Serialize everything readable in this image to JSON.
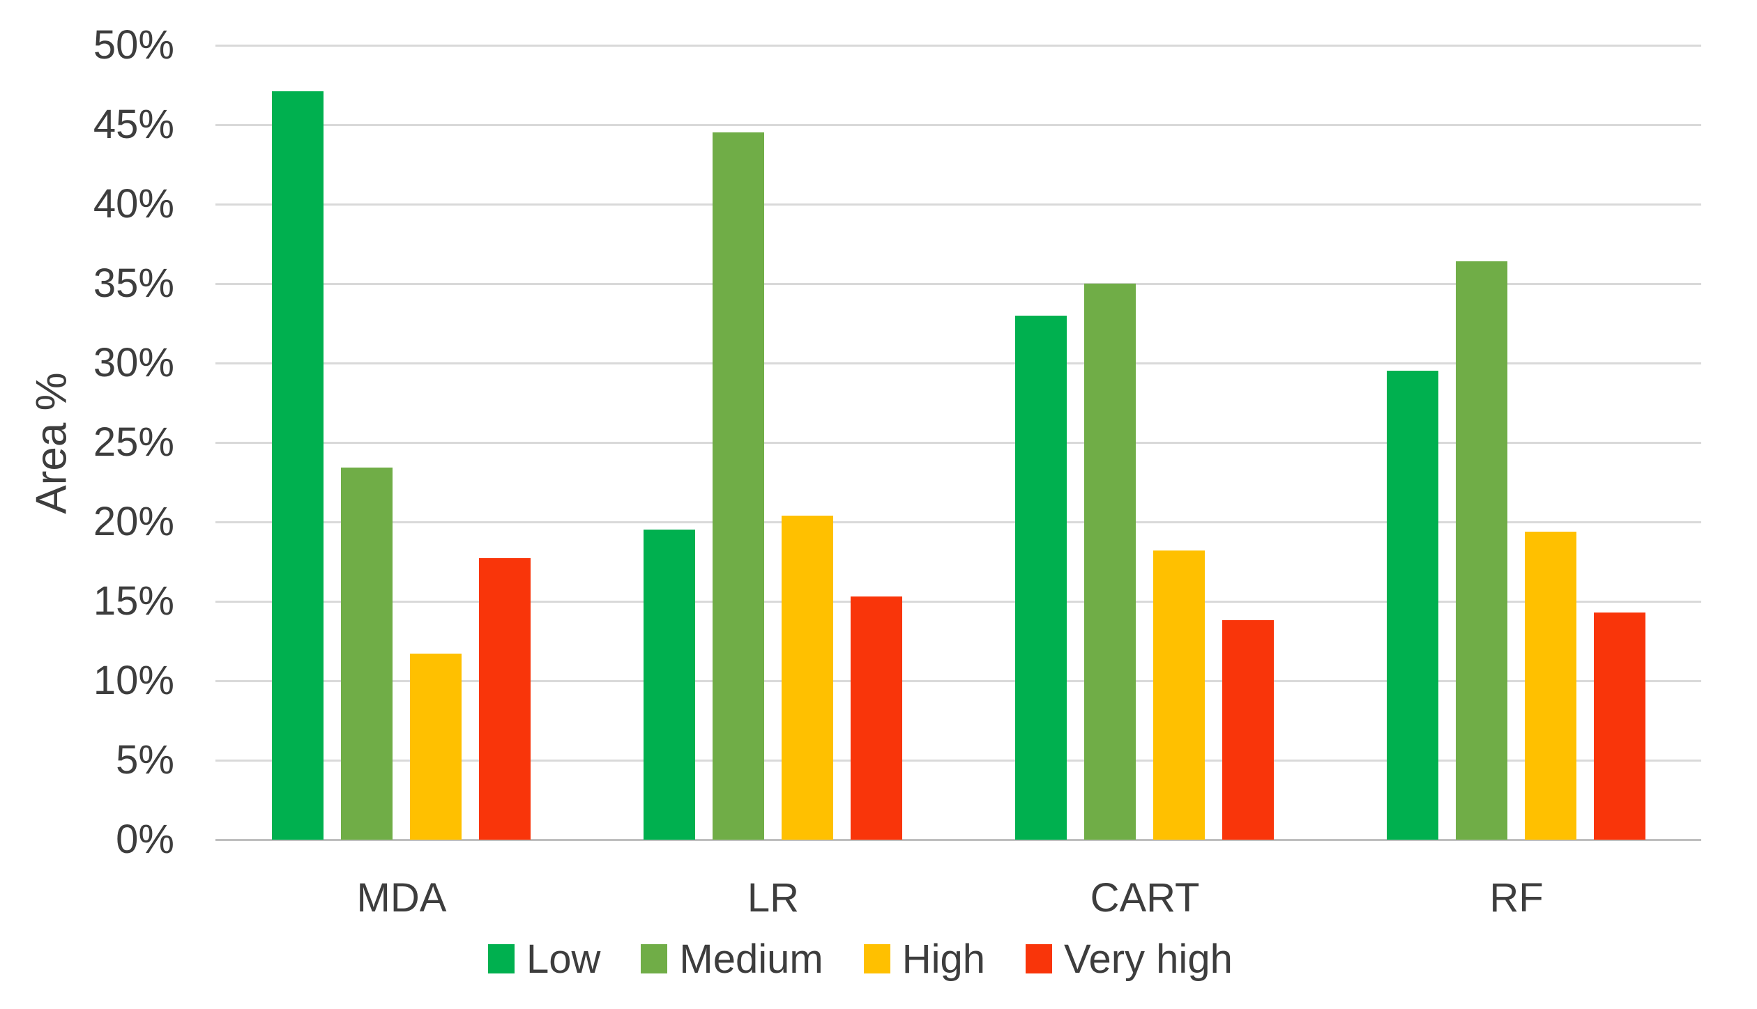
{
  "chart_data": {
    "type": "bar",
    "title": "",
    "ylabel": "Area %",
    "xlabel": "",
    "categories": [
      "MDA",
      "LR",
      "CART",
      "RF"
    ],
    "series": [
      {
        "name": "Low",
        "color": "#00B04F",
        "values": [
          47.1,
          19.5,
          33.0,
          29.5
        ]
      },
      {
        "name": "Medium",
        "color": "#70AD47",
        "values": [
          23.4,
          44.5,
          35.0,
          36.4
        ]
      },
      {
        "name": "High",
        "color": "#FFC000",
        "values": [
          11.7,
          20.4,
          18.2,
          19.4
        ]
      },
      {
        "name": "Very high",
        "color": "#F9350A",
        "values": [
          17.7,
          15.3,
          13.8,
          14.3
        ]
      }
    ],
    "ylim": [
      0,
      50
    ],
    "ytick_step": 5,
    "ytick_suffix": "%",
    "grid": "horizontal-only",
    "legend_position": "bottom"
  },
  "colors": {
    "background": "#FFFFFF",
    "text": "#3D3D3D",
    "gridline": "#D9D9D9",
    "axis_line": "#BFBFBF"
  }
}
